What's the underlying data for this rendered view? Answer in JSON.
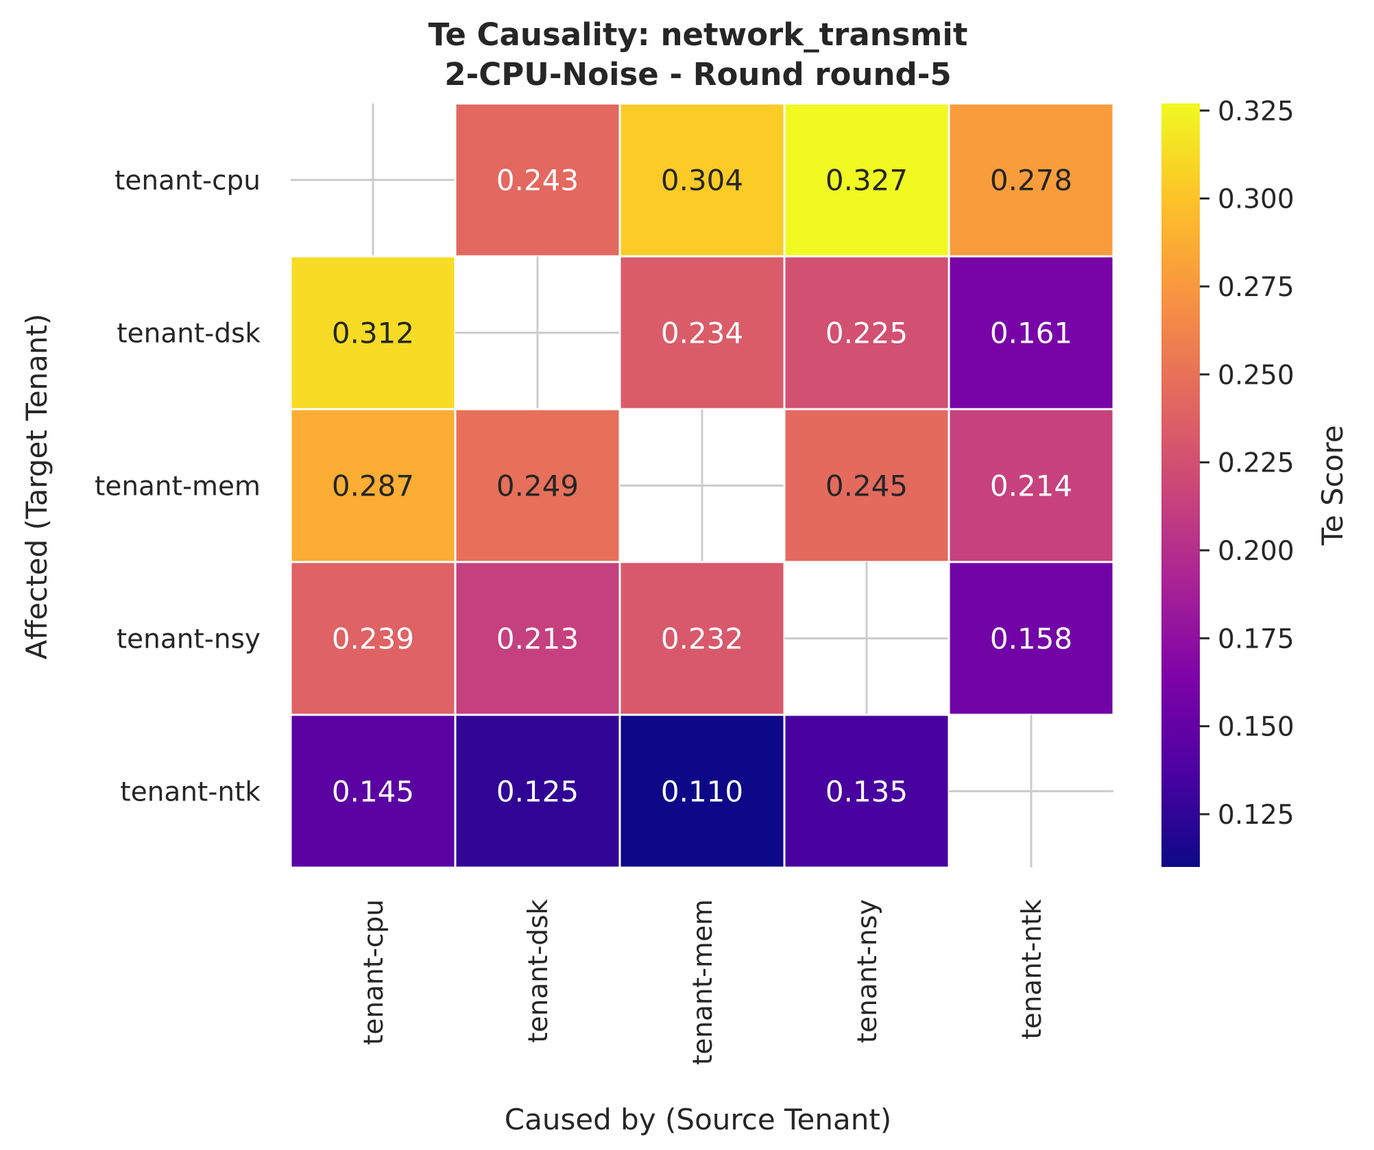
{
  "chart_data": {
    "type": "heatmap",
    "title": "Te Causality: network_transmit",
    "subtitle": "2-CPU-Noise - Round round-5",
    "xlabel": "Caused by (Source Tenant)",
    "ylabel": "Affected (Target Tenant)",
    "x_categories": [
      "tenant-cpu",
      "tenant-dsk",
      "tenant-mem",
      "tenant-nsy",
      "tenant-ntk"
    ],
    "y_categories": [
      "tenant-cpu",
      "tenant-dsk",
      "tenant-mem",
      "tenant-nsy",
      "tenant-ntk"
    ],
    "values": [
      [
        null,
        0.243,
        0.304,
        0.327,
        0.278
      ],
      [
        0.312,
        null,
        0.234,
        0.225,
        0.161
      ],
      [
        0.287,
        0.249,
        null,
        0.245,
        0.214
      ],
      [
        0.239,
        0.213,
        0.232,
        null,
        0.158
      ],
      [
        0.145,
        0.125,
        0.11,
        0.135,
        null
      ]
    ],
    "colormap": "plasma",
    "colorbar": {
      "label": "Te Score",
      "range": [
        0.11,
        0.327
      ],
      "ticks": [
        "0.125",
        "0.150",
        "0.175",
        "0.200",
        "0.225",
        "0.250",
        "0.275",
        "0.300",
        "0.325"
      ]
    },
    "diagonal": "blank with light gray cross",
    "value_format": "3 decimals"
  }
}
